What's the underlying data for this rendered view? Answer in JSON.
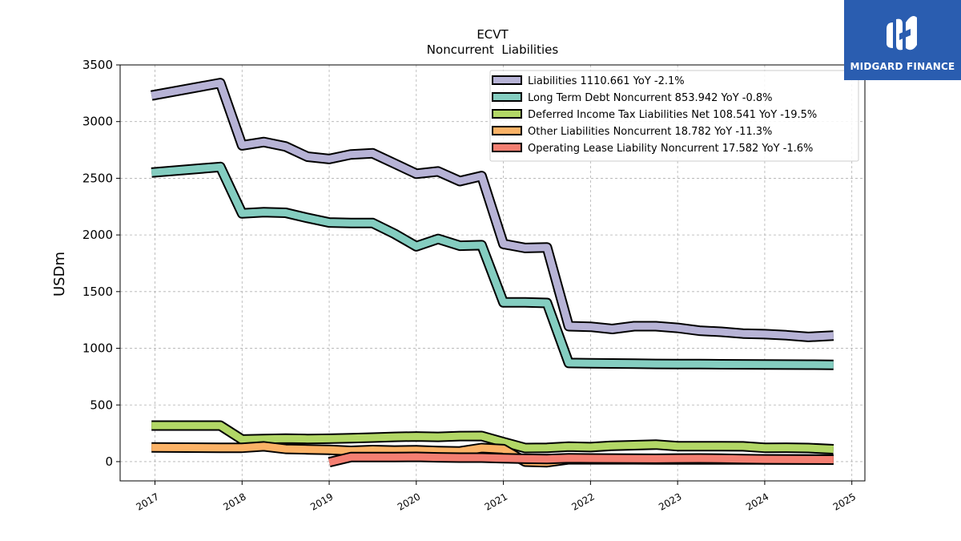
{
  "brand": {
    "name": "MIDGARD FINANCE",
    "bg_color": "#2a5db0"
  },
  "chart_data": {
    "type": "line",
    "title": "ECVT",
    "subtitle": "Noncurrent  Liabilities",
    "xlabel": "",
    "ylabel": "USDm",
    "xlim": [
      2016.6,
      2025.15
    ],
    "ylim": [
      -170,
      3500
    ],
    "x_ticks": [
      "2017",
      "2018",
      "2019",
      "2020",
      "2021",
      "2022",
      "2023",
      "2024",
      "2025"
    ],
    "y_ticks": [
      0,
      500,
      1000,
      1500,
      2000,
      2500,
      3000,
      3500
    ],
    "grid": true,
    "legend_position": "top-right",
    "series": [
      {
        "name": "Liabilities",
        "legend_label": "Liabilities  1110.661 YoY -2.1%",
        "color": "#b7b3d6",
        "points": [
          [
            2016.96,
            3230
          ],
          [
            2017.75,
            3340
          ],
          [
            2018.0,
            2790
          ],
          [
            2018.25,
            2820
          ],
          [
            2018.5,
            2780
          ],
          [
            2018.75,
            2690
          ],
          [
            2019.0,
            2670
          ],
          [
            2019.25,
            2710
          ],
          [
            2019.5,
            2720
          ],
          [
            2019.75,
            2630
          ],
          [
            2020.0,
            2540
          ],
          [
            2020.25,
            2560
          ],
          [
            2020.5,
            2475
          ],
          [
            2020.75,
            2520
          ],
          [
            2021.0,
            1920
          ],
          [
            2021.25,
            1885
          ],
          [
            2021.5,
            1890
          ],
          [
            2021.75,
            1195
          ],
          [
            2022.0,
            1190
          ],
          [
            2022.25,
            1170
          ],
          [
            2022.5,
            1195
          ],
          [
            2022.75,
            1195
          ],
          [
            2023.0,
            1180
          ],
          [
            2023.25,
            1155
          ],
          [
            2023.5,
            1145
          ],
          [
            2023.75,
            1130
          ],
          [
            2024.0,
            1125
          ],
          [
            2024.25,
            1115
          ],
          [
            2024.5,
            1100
          ],
          [
            2024.79,
            1111
          ]
        ]
      },
      {
        "name": "Long Term Debt Noncurrent",
        "legend_label": "Long Term Debt Noncurrent  853.942 YoY -0.8%",
        "color": "#84cdc0",
        "points": [
          [
            2016.96,
            2550
          ],
          [
            2017.75,
            2600
          ],
          [
            2018.0,
            2190
          ],
          [
            2018.25,
            2200
          ],
          [
            2018.5,
            2195
          ],
          [
            2018.75,
            2150
          ],
          [
            2019.0,
            2110
          ],
          [
            2019.25,
            2105
          ],
          [
            2019.5,
            2105
          ],
          [
            2019.75,
            2010
          ],
          [
            2020.0,
            1900
          ],
          [
            2020.25,
            1965
          ],
          [
            2020.5,
            1905
          ],
          [
            2020.75,
            1910
          ],
          [
            2021.0,
            1405
          ],
          [
            2021.25,
            1405
          ],
          [
            2021.5,
            1400
          ],
          [
            2021.75,
            870
          ],
          [
            2022.0,
            868
          ],
          [
            2022.25,
            866
          ],
          [
            2022.5,
            864
          ],
          [
            2022.75,
            862
          ],
          [
            2023.0,
            861
          ],
          [
            2023.25,
            860
          ],
          [
            2023.5,
            859
          ],
          [
            2023.75,
            858
          ],
          [
            2024.0,
            857
          ],
          [
            2024.25,
            856
          ],
          [
            2024.5,
            855
          ],
          [
            2024.79,
            854
          ]
        ]
      },
      {
        "name": "Deferred Income Tax Liabilities Net",
        "legend_label": "Deferred Income Tax Liabilities Net  108.541 YoY -19.5%",
        "color": "#b2d766",
        "points": [
          [
            2016.96,
            318
          ],
          [
            2017.75,
            318
          ],
          [
            2018.0,
            195
          ],
          [
            2018.25,
            200
          ],
          [
            2018.5,
            203
          ],
          [
            2018.75,
            200
          ],
          [
            2019.0,
            202
          ],
          [
            2019.25,
            207
          ],
          [
            2019.5,
            212
          ],
          [
            2019.75,
            218
          ],
          [
            2020.0,
            222
          ],
          [
            2020.25,
            218
          ],
          [
            2020.5,
            225
          ],
          [
            2020.75,
            226
          ],
          [
            2021.0,
            172
          ],
          [
            2021.25,
            120
          ],
          [
            2021.5,
            122
          ],
          [
            2021.75,
            132
          ],
          [
            2022.0,
            128
          ],
          [
            2022.25,
            140
          ],
          [
            2022.5,
            145
          ],
          [
            2022.75,
            150
          ],
          [
            2023.0,
            136
          ],
          [
            2023.25,
            136
          ],
          [
            2023.5,
            136
          ],
          [
            2023.75,
            135
          ],
          [
            2024.0,
            122
          ],
          [
            2024.25,
            123
          ],
          [
            2024.5,
            120
          ],
          [
            2024.79,
            109
          ]
        ]
      },
      {
        "name": "Other Liabilities Noncurrent",
        "legend_label": "Other Liabilities Noncurrent  18.782 YoY -11.3%",
        "color": "#fbb266",
        "points": [
          [
            2016.96,
            125
          ],
          [
            2017.75,
            122
          ],
          [
            2018.0,
            122
          ],
          [
            2018.25,
            135
          ],
          [
            2018.5,
            112
          ],
          [
            2018.75,
            108
          ],
          [
            2019.0,
            104
          ],
          [
            2019.25,
            95
          ],
          [
            2019.5,
            102
          ],
          [
            2019.75,
            98
          ],
          [
            2020.0,
            100
          ],
          [
            2020.25,
            94
          ],
          [
            2020.5,
            90
          ],
          [
            2020.75,
            120
          ],
          [
            2021.0,
            110
          ],
          [
            2021.25,
            0
          ],
          [
            2021.5,
            -5
          ],
          [
            2021.75,
            20
          ],
          [
            2022.0,
            20
          ],
          [
            2022.25,
            20
          ],
          [
            2022.5,
            20
          ],
          [
            2022.75,
            19
          ],
          [
            2023.0,
            19
          ],
          [
            2023.25,
            19
          ],
          [
            2023.5,
            19
          ],
          [
            2023.75,
            19
          ],
          [
            2024.0,
            19
          ],
          [
            2024.25,
            19
          ],
          [
            2024.5,
            19
          ],
          [
            2024.79,
            18.8
          ]
        ]
      },
      {
        "name": "Operating Lease Liability Noncurrent",
        "legend_label": "Operating Lease Liability Noncurrent  17.582 YoY -1.6%",
        "color": "#f47f72",
        "points": [
          [
            2019.0,
            -5
          ],
          [
            2019.25,
            40
          ],
          [
            2019.5,
            40
          ],
          [
            2019.75,
            40
          ],
          [
            2020.0,
            42
          ],
          [
            2020.25,
            38
          ],
          [
            2020.5,
            35
          ],
          [
            2020.75,
            35
          ],
          [
            2021.0,
            30
          ],
          [
            2021.25,
            25
          ],
          [
            2021.5,
            22
          ],
          [
            2021.75,
            30
          ],
          [
            2022.0,
            28
          ],
          [
            2022.25,
            27
          ],
          [
            2022.5,
            26
          ],
          [
            2022.75,
            25
          ],
          [
            2023.0,
            27
          ],
          [
            2023.25,
            28
          ],
          [
            2023.5,
            26
          ],
          [
            2023.75,
            22
          ],
          [
            2024.0,
            20
          ],
          [
            2024.25,
            19
          ],
          [
            2024.5,
            18
          ],
          [
            2024.79,
            17.6
          ]
        ]
      }
    ]
  }
}
